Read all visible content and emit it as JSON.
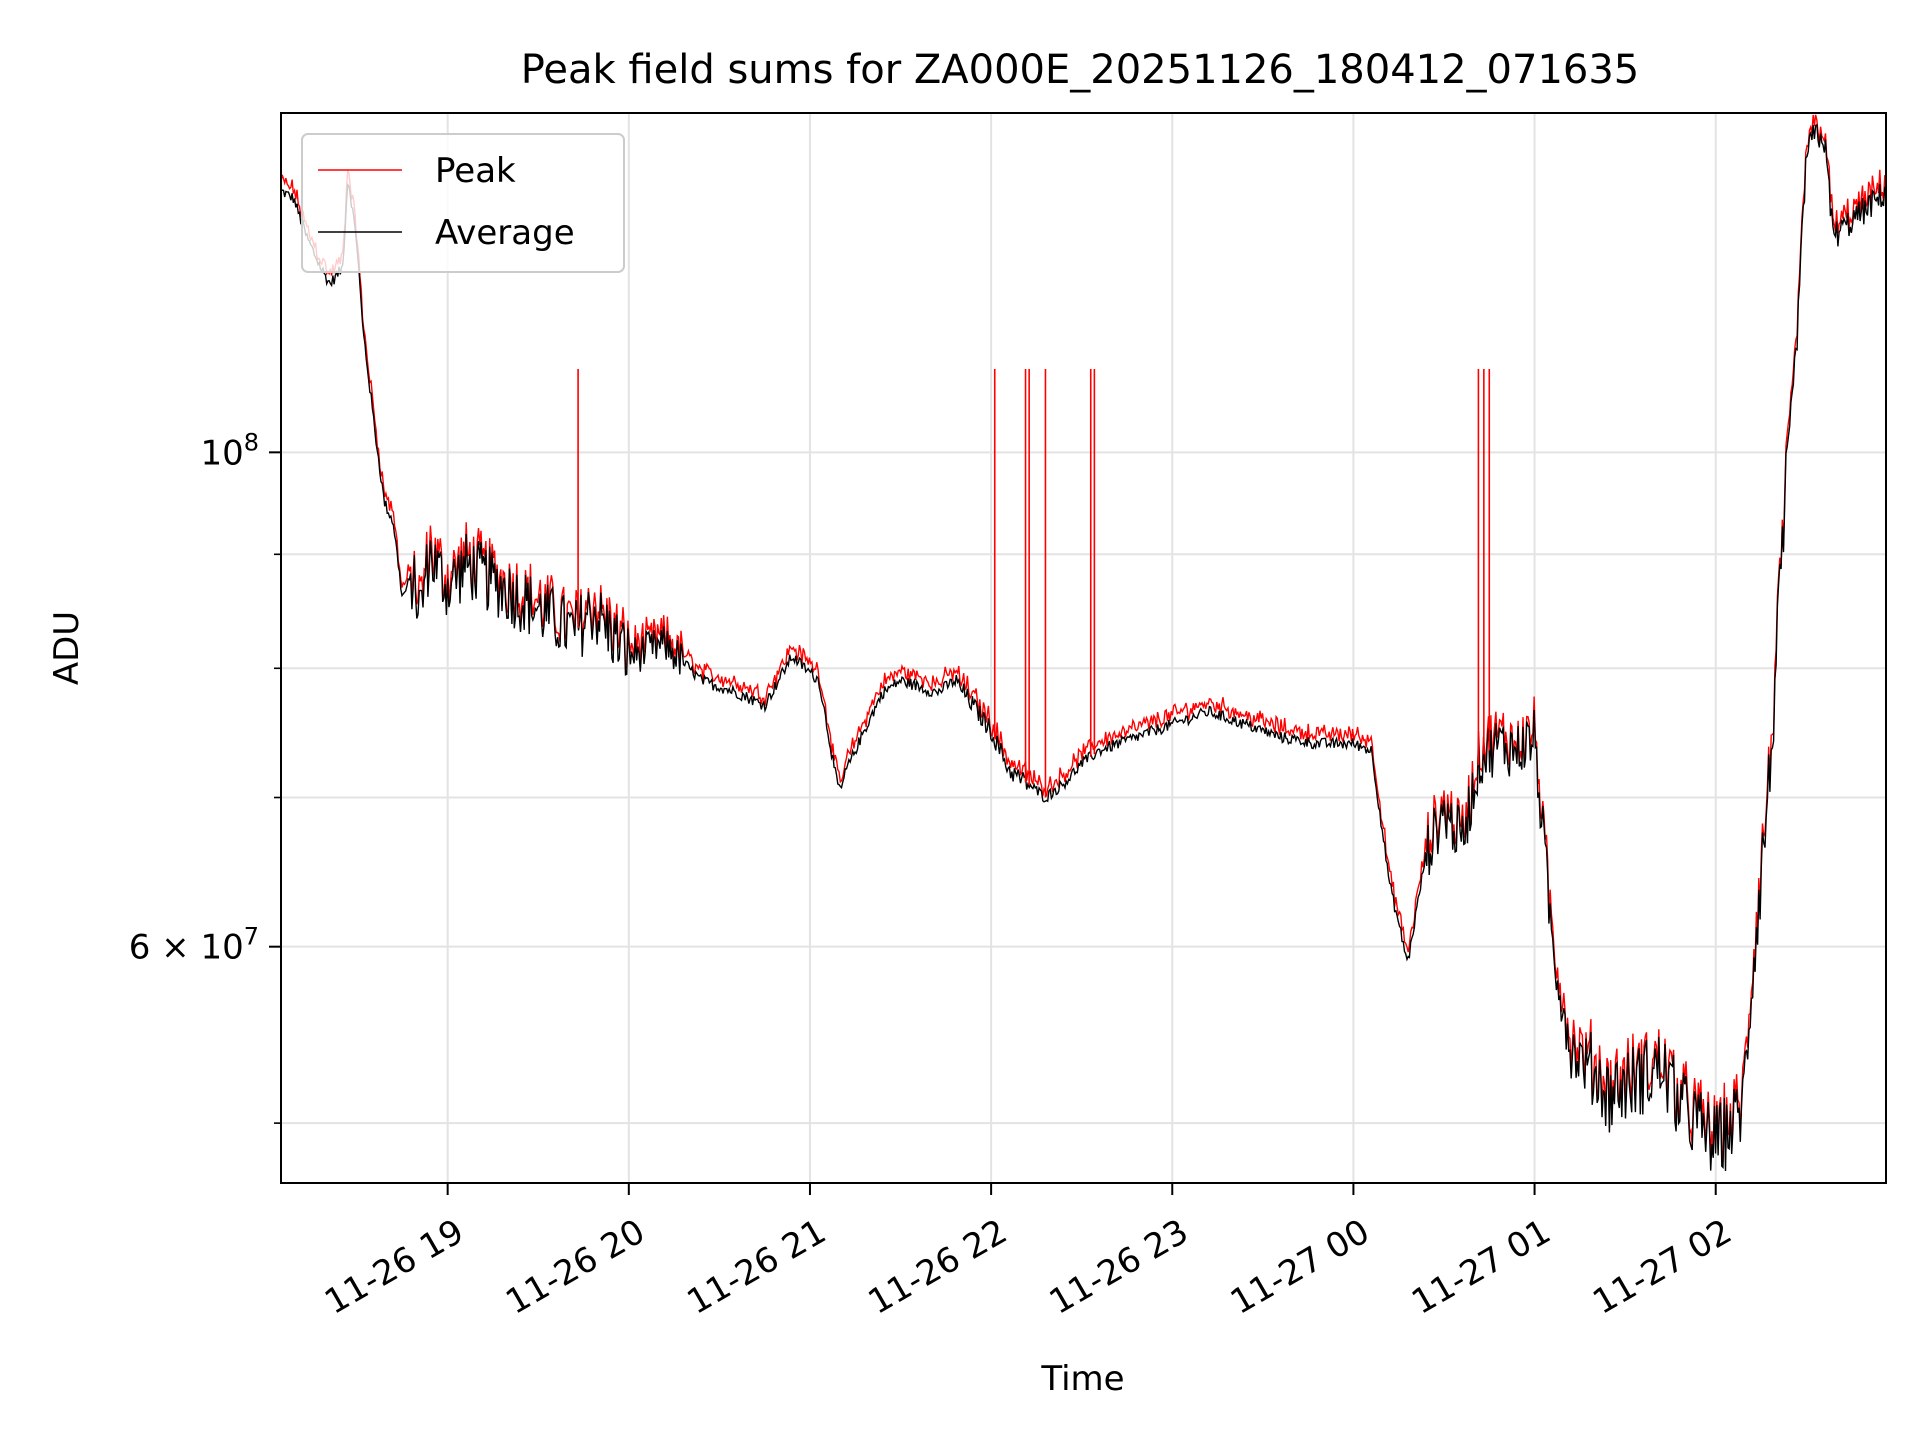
{
  "chart_data": {
    "type": "line",
    "title": "Peak field sums for ZA000E_20251126_180412_071635",
    "xlabel": "Time",
    "ylabel": "ADU",
    "yscale": "log",
    "grid": true,
    "legend_position": "upper-left",
    "x_ticks": [
      "11-26 19",
      "11-26 20",
      "11-26 21",
      "11-26 22",
      "11-26 23",
      "11-27 00",
      "11-27 01",
      "11-27 02"
    ],
    "y_tick_labels": [
      {
        "value": 100000000,
        "mantissa": "",
        "base": "10",
        "exp": "8"
      },
      {
        "value": 60000000,
        "mantissa": "6 × ",
        "base": "10",
        "exp": "7"
      }
    ],
    "y_minor_ticks": [
      50000000,
      70000000,
      80000000,
      90000000
    ],
    "x_range_hours": [
      18.08,
      26.94
    ],
    "y_range": [
      47000000,
      142000000
    ],
    "series": [
      {
        "name": "Peak",
        "color": "#ff0000"
      },
      {
        "name": "Average",
        "color": "#000000"
      }
    ],
    "x_hours": [
      18.08,
      18.15,
      18.22,
      18.3,
      18.35,
      18.42,
      18.45,
      18.5,
      18.53,
      18.6,
      18.65,
      18.7,
      18.75,
      18.8,
      18.85,
      18.9,
      19.0,
      19.1,
      19.2,
      19.4,
      19.6,
      19.7,
      19.8,
      19.9,
      20.0,
      20.2,
      20.4,
      20.6,
      20.75,
      20.9,
      21.05,
      21.15,
      21.17,
      21.2,
      21.3,
      21.4,
      21.5,
      21.6,
      21.7,
      21.8,
      21.9,
      22.0,
      22.1,
      22.2,
      22.3,
      22.4,
      22.5,
      22.6,
      22.7,
      22.8,
      23.0,
      23.2,
      23.4,
      23.6,
      23.8,
      24.0,
      24.1,
      24.2,
      24.3,
      24.4,
      24.5,
      24.6,
      24.7,
      24.8,
      24.9,
      25.0,
      25.1,
      25.2,
      25.3,
      25.35,
      25.4,
      25.5,
      25.6,
      25.7,
      25.8,
      25.9,
      26.0,
      26.1,
      26.15,
      26.2,
      26.3,
      26.4,
      26.45,
      26.5,
      26.55,
      26.6,
      26.65,
      26.7,
      26.75,
      26.8,
      26.85,
      26.9,
      26.94
    ],
    "average_values": [
      131000000,
      130000000,
      125000000,
      121000000,
      119000000,
      121000000,
      133000000,
      124000000,
      114000000,
      102000000,
      95000000,
      93000000,
      86000000,
      88000000,
      85000000,
      90000000,
      87000000,
      89000000,
      88000000,
      86000000,
      84000000,
      83000000,
      85000000,
      83000000,
      81000000,
      82000000,
      79000000,
      78000000,
      77000000,
      81000000,
      79000000,
      71000000,
      70500000,
      72000000,
      75000000,
      78000000,
      79000000,
      78500000,
      78000000,
      79000000,
      77000000,
      75000000,
      72000000,
      71000000,
      70000000,
      71000000,
      72500000,
      73500000,
      74000000,
      74500000,
      75500000,
      76500000,
      75500000,
      74500000,
      74000000,
      74000000,
      73500000,
      64000000,
      59000000,
      66000000,
      69000000,
      67000000,
      73000000,
      74000000,
      73500000,
      74500000,
      60000000,
      54000000,
      53000000,
      52500000,
      51500000,
      52000000,
      52500000,
      53000000,
      51000000,
      50000000,
      49000000,
      50000000,
      51000000,
      58000000,
      72000000,
      100000000,
      113000000,
      136000000,
      139000000,
      138000000,
      125000000,
      126000000,
      127000000,
      128000000,
      129000000,
      130000000,
      131000000
    ],
    "peak_spikes": [
      {
        "x": 19.72,
        "value": 109000000
      },
      {
        "x": 22.02,
        "value": 109000000
      },
      {
        "x": 22.19,
        "value": 109000000
      },
      {
        "x": 22.21,
        "value": 109000000
      },
      {
        "x": 22.3,
        "value": 109000000
      },
      {
        "x": 22.55,
        "value": 109000000
      },
      {
        "x": 22.57,
        "value": 109000000
      },
      {
        "x": 24.69,
        "value": 109000000
      },
      {
        "x": 24.72,
        "value": 109000000
      },
      {
        "x": 24.75,
        "value": 109000000
      }
    ]
  }
}
